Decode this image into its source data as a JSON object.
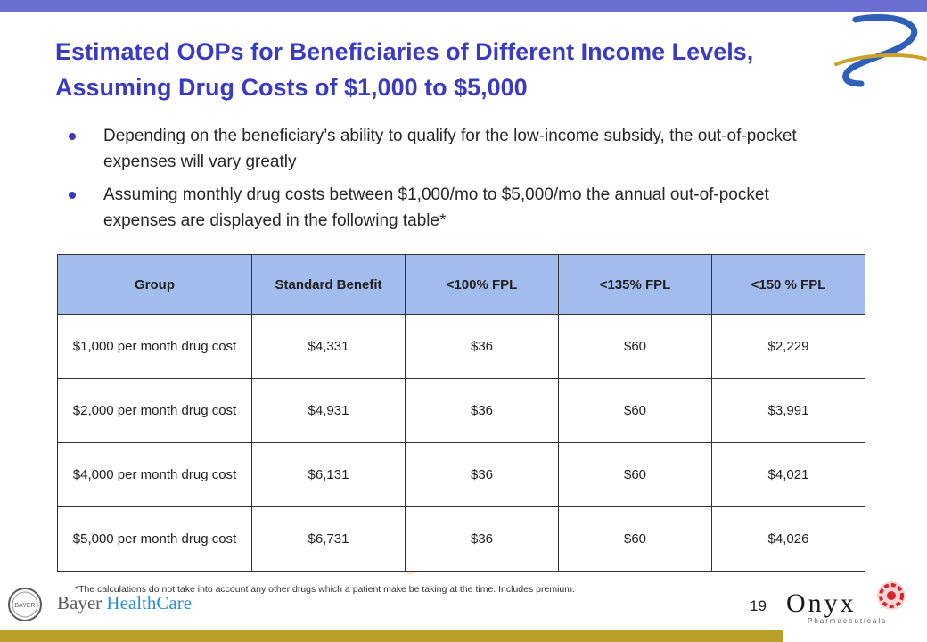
{
  "slide": {
    "title": "Estimated OOPs for Beneficiaries of Different Income Levels, Assuming Drug Costs of $1,000 to $5,000",
    "bullets": [
      "Depending on the beneficiary’s ability to qualify for the low-income subsidy, the out-of-pocket expenses will vary greatly",
      "Assuming monthly drug costs between $1,000/mo to $5,000/mo the annual out-of-pocket expenses are displayed in the following table*"
    ],
    "footnote": "*The calculations do not take into account any other drugs which a patient make be taking at the time.  Includes premium.",
    "page_number": "19"
  },
  "table": {
    "headers": [
      "Group",
      "Standard Benefit",
      "<100% FPL",
      "<135% FPL",
      "<150 % FPL"
    ],
    "rows": [
      [
        "$1,000 per month drug cost",
        "$4,331",
        "$36",
        "$60",
        "$2,229"
      ],
      [
        "$2,000 per month drug cost",
        "$4,931",
        "$36",
        "$60",
        "$3,991"
      ],
      [
        "$4,000 per month drug cost",
        "$6,131",
        "$36",
        "$60",
        "$4,021"
      ],
      [
        "$5,000 per month drug cost",
        "$6,731",
        "$36",
        "$60",
        "$4,026"
      ]
    ]
  },
  "logos": {
    "bayer_seal_text": "BAYER",
    "bayer_name": "Bayer ",
    "bayer_name_accent": "HealthCare",
    "onyx_name": "Onyx",
    "onyx_sub": "Pharmaceuticals"
  },
  "colors": {
    "title": "#3b3bc0",
    "top_bar": "#6a6fd0",
    "bottom_bar": "#b8a02b",
    "table_header": "#a3bcee",
    "bayer_accent": "#2d8fd0",
    "onyx_mark": "#d8262e"
  },
  "icons": [
    "swoosh-logo-icon",
    "bullet-dot-icon",
    "bayer-cross-icon",
    "onyx-sphere-icon"
  ]
}
